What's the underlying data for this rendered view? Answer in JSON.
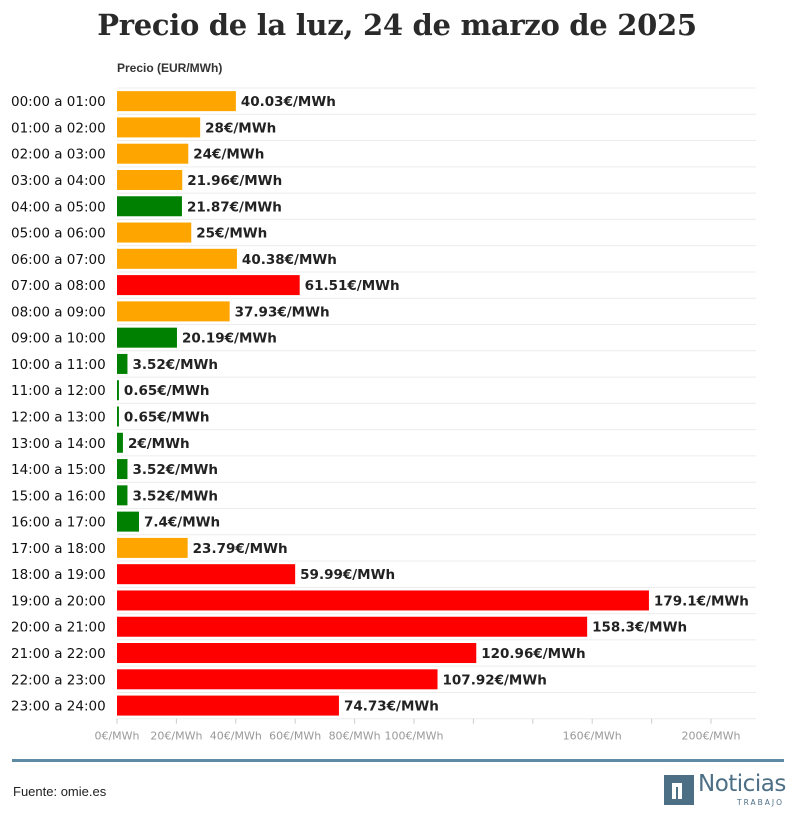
{
  "chart_data": {
    "type": "bar",
    "orientation": "horizontal",
    "title": "Precio de la luz, 24 de marzo de 2025",
    "ylabel": "Precio (EUR/MWh)",
    "xlim": [
      0,
      215
    ],
    "grid": true,
    "x_ticks": [
      {
        "value": 0,
        "label": "0€/MWh"
      },
      {
        "value": 20,
        "label": "20€/MWh"
      },
      {
        "value": 40,
        "label": "40€/MWh"
      },
      {
        "value": 60,
        "label": "60€/MWh"
      },
      {
        "value": 80,
        "label": "80€/MWh"
      },
      {
        "value": 100,
        "label": "100€/MWh"
      },
      {
        "value": 120,
        "label": ""
      },
      {
        "value": 140,
        "label": ""
      },
      {
        "value": 160,
        "label": "160€/MWh"
      },
      {
        "value": 180,
        "label": ""
      },
      {
        "value": 200,
        "label": "200€/MWh"
      }
    ],
    "categories": [
      "00:00 a 01:00",
      "01:00 a 02:00",
      "02:00 a 03:00",
      "03:00 a 04:00",
      "04:00 a 05:00",
      "05:00 a 06:00",
      "06:00 a 07:00",
      "07:00 a 08:00",
      "08:00 a 09:00",
      "09:00 a 10:00",
      "10:00 a 11:00",
      "11:00 a 12:00",
      "12:00 a 13:00",
      "13:00 a 14:00",
      "14:00 a 15:00",
      "15:00 a 16:00",
      "16:00 a 17:00",
      "17:00 a 18:00",
      "18:00 a 19:00",
      "19:00 a 20:00",
      "20:00 a 21:00",
      "21:00 a 22:00",
      "22:00 a 23:00",
      "23:00 a 24:00"
    ],
    "values": [
      40.03,
      28,
      24,
      21.96,
      21.87,
      25,
      40.38,
      61.51,
      37.93,
      20.19,
      3.52,
      0.65,
      0.65,
      2,
      3.52,
      3.52,
      7.4,
      23.79,
      59.99,
      179.1,
      158.3,
      120.96,
      107.92,
      74.73
    ],
    "value_labels": [
      "40.03€/MWh",
      "28€/MWh",
      "24€/MWh",
      "21.96€/MWh",
      "21.87€/MWh",
      "25€/MWh",
      "40.38€/MWh",
      "61.51€/MWh",
      "37.93€/MWh",
      "20.19€/MWh",
      "3.52€/MWh",
      "0.65€/MWh",
      "0.65€/MWh",
      "2€/MWh",
      "3.52€/MWh",
      "3.52€/MWh",
      "7.4€/MWh",
      "23.79€/MWh",
      "59.99€/MWh",
      "179.1€/MWh",
      "158.3€/MWh",
      "120.96€/MWh",
      "107.92€/MWh",
      "74.73€/MWh"
    ],
    "bar_colors": [
      "#ffa500",
      "#ffa500",
      "#ffa500",
      "#ffa500",
      "#008000",
      "#ffa500",
      "#ffa500",
      "#ff0000",
      "#ffa500",
      "#008000",
      "#008000",
      "#008000",
      "#008000",
      "#008000",
      "#008000",
      "#008000",
      "#008000",
      "#ffa500",
      "#ff0000",
      "#ff0000",
      "#ff0000",
      "#ff0000",
      "#ff0000",
      "#ff0000"
    ]
  },
  "footer": {
    "source": "Fuente: omie.es",
    "logo_word": "Noticias",
    "logo_sub": "TRABAJO"
  },
  "colors": {
    "cheap": "#008000",
    "medium": "#ffa500",
    "expensive": "#ff0000",
    "brand": "#4d6f86"
  }
}
